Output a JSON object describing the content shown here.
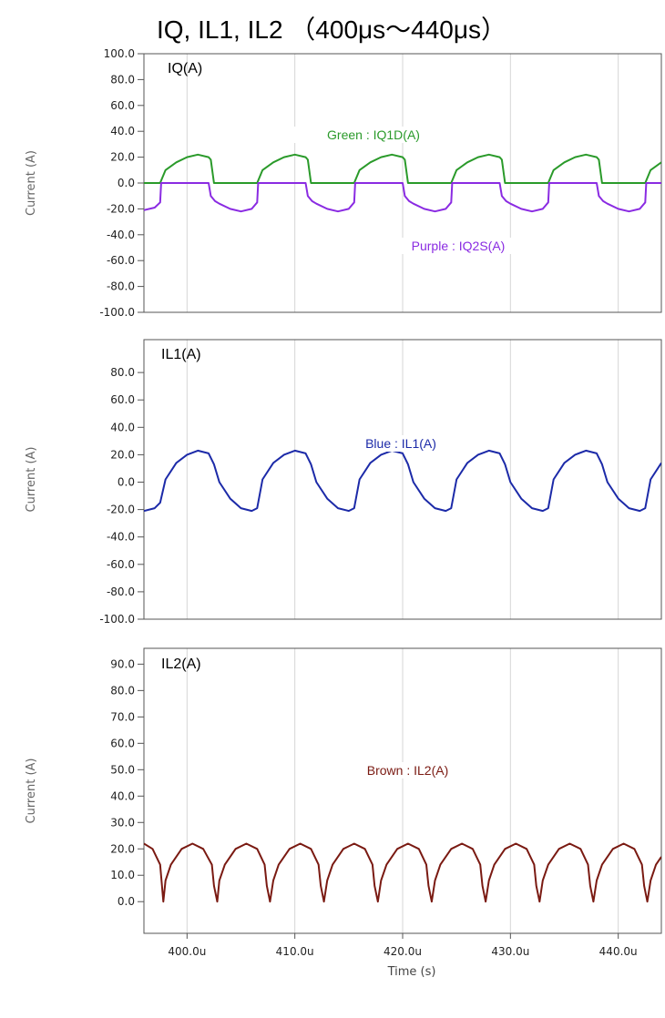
{
  "title": "IQ, IL1, IL2 （400μs～440μs）",
  "chart_data": [
    {
      "type": "line",
      "panel_title": "IQ(A)",
      "ylabel": "Current (A)",
      "ylim": [
        -100,
        100
      ],
      "yticks": [
        "100.0",
        "80.0",
        "60.0",
        "40.0",
        "20.0",
        "0.0",
        "-20.0",
        "-40.0",
        "-60.0",
        "-80.0",
        "-100.0"
      ],
      "grid": true,
      "xlim": [
        396,
        444
      ],
      "series": [
        {
          "name": "IQ1D(A)",
          "legend_label": "Green : IQ1D(A)",
          "color": "#2a9a2a",
          "x": [
            396,
            397.5,
            398,
            399,
            400,
            401,
            402,
            402.2,
            402.5,
            403,
            404,
            405,
            406,
            406.5,
            407,
            408,
            409,
            410,
            411,
            411.2,
            411.5,
            412,
            413,
            414,
            415,
            415.5,
            416,
            417,
            418,
            419,
            420,
            420.2,
            420.5,
            421,
            422,
            423,
            424,
            424.5,
            425,
            426,
            427,
            428,
            429,
            429.2,
            429.5,
            430,
            431,
            432,
            433,
            433.5,
            434,
            435,
            436,
            437,
            438,
            438.2,
            438.5,
            439,
            440,
            441,
            442,
            442.5,
            443,
            444
          ],
          "y": [
            0,
            0,
            10,
            16,
            20,
            22,
            20,
            18,
            0,
            0,
            0,
            0,
            0,
            0,
            10,
            16,
            20,
            22,
            20,
            18,
            0,
            0,
            0,
            0,
            0,
            0,
            10,
            16,
            20,
            22,
            20,
            18,
            0,
            0,
            0,
            0,
            0,
            0,
            10,
            16,
            20,
            22,
            20,
            18,
            0,
            0,
            0,
            0,
            0,
            0,
            10,
            16,
            20,
            22,
            20,
            18,
            0,
            0,
            0,
            0,
            0,
            0,
            10,
            16
          ]
        },
        {
          "name": "IQ2S(A)",
          "legend_label": "Purple : IQ2S(A)",
          "color": "#8a2be2",
          "x": [
            396,
            397,
            397.5,
            397.6,
            398,
            399,
            400,
            401,
            402,
            402.2,
            402.6,
            403,
            404,
            405,
            406,
            406.5,
            406.6,
            407,
            408,
            409,
            410,
            411,
            411.2,
            411.6,
            412,
            413,
            414,
            415,
            415.5,
            415.6,
            416,
            417,
            418,
            419,
            420,
            420.2,
            420.6,
            421,
            422,
            423,
            424,
            424.5,
            424.6,
            425,
            426,
            427,
            428,
            429,
            429.2,
            429.6,
            430,
            431,
            432,
            433,
            433.5,
            433.6,
            434,
            435,
            436,
            437,
            438,
            438.2,
            438.6,
            439,
            440,
            441,
            442,
            442.5,
            442.6,
            443,
            444
          ],
          "y": [
            -21,
            -19,
            -15,
            0,
            0,
            0,
            0,
            0,
            0,
            -10,
            -14,
            -16,
            -20,
            -22,
            -20,
            -15,
            0,
            0,
            0,
            0,
            0,
            0,
            -10,
            -14,
            -16,
            -20,
            -22,
            -20,
            -15,
            0,
            0,
            0,
            0,
            0,
            0,
            -10,
            -14,
            -16,
            -20,
            -22,
            -20,
            -15,
            0,
            0,
            0,
            0,
            0,
            0,
            -10,
            -14,
            -16,
            -20,
            -22,
            -20,
            -15,
            0,
            0,
            0,
            0,
            0,
            0,
            -10,
            -14,
            -16,
            -20,
            -22,
            -20,
            -15,
            0,
            0,
            0
          ]
        }
      ]
    },
    {
      "type": "line",
      "panel_title": "IL1(A)",
      "ylabel": "Current (A)",
      "ylim": [
        -100,
        100
      ],
      "yticks": [
        "80.0",
        "60.0",
        "40.0",
        "20.0",
        "0.0",
        "-20.0",
        "-40.0",
        "-60.0",
        "-80.0",
        "-100.0"
      ],
      "grid": true,
      "xlim": [
        396,
        444
      ],
      "series": [
        {
          "name": "IL1(A)",
          "legend_label": "Blue : IL1(A)",
          "color": "#1c2aa8",
          "x": [
            396,
            397,
            397.5,
            398,
            399,
            400,
            401,
            402,
            402.5,
            403,
            404,
            405,
            406,
            406.5,
            407,
            408,
            409,
            410,
            411,
            411.5,
            412,
            413,
            414,
            415,
            415.5,
            416,
            417,
            418,
            419,
            420,
            420.5,
            421,
            422,
            423,
            424,
            424.5,
            425,
            426,
            427,
            428,
            429,
            429.5,
            430,
            431,
            432,
            433,
            433.5,
            434,
            435,
            436,
            437,
            438,
            438.5,
            439,
            440,
            441,
            442,
            442.5,
            443,
            444
          ],
          "y": [
            -21,
            -19,
            -15,
            2,
            14,
            20,
            23,
            21,
            13,
            0,
            -12,
            -19,
            -21,
            -19,
            2,
            14,
            20,
            23,
            21,
            13,
            0,
            -12,
            -19,
            -21,
            -19,
            2,
            14,
            20,
            23,
            21,
            13,
            0,
            -12,
            -19,
            -21,
            -19,
            2,
            14,
            20,
            23,
            21,
            13,
            0,
            -12,
            -19,
            -21,
            -19,
            2,
            14,
            20,
            23,
            21,
            13,
            0,
            -12,
            -19,
            -21,
            -19,
            2,
            14
          ]
        }
      ]
    },
    {
      "type": "line",
      "panel_title": "IL2(A)",
      "ylabel": "Current (A)",
      "xlabel": "Time (s)",
      "ylim": [
        -10,
        95
      ],
      "yticks": [
        "90.0",
        "80.0",
        "70.0",
        "60.0",
        "50.0",
        "40.0",
        "30.0",
        "20.0",
        "10.0",
        "0.0"
      ],
      "xticks": [
        "400.0u",
        "410.0u",
        "420.0u",
        "430.0u",
        "440.0u"
      ],
      "grid": true,
      "xlim": [
        396,
        444
      ],
      "series": [
        {
          "name": "IL2(A)",
          "legend_label": "Brown : IL2(A)",
          "color": "#7a1a12",
          "x": [
            396,
            396.8,
            397.5,
            397.8,
            398,
            398.5,
            399.5,
            400.5,
            401.5,
            402.3,
            402.5,
            402.8,
            403,
            403.5,
            404.5,
            405.5,
            406.5,
            407.2,
            407.4,
            407.7,
            408,
            408.5,
            409.5,
            410.5,
            411.5,
            412.2,
            412.4,
            412.7,
            413,
            413.5,
            414.5,
            415.5,
            416.5,
            417.2,
            417.4,
            417.7,
            418,
            418.5,
            419.5,
            420.5,
            421.5,
            422.2,
            422.4,
            422.7,
            423,
            423.5,
            424.5,
            425.5,
            426.5,
            427.2,
            427.4,
            427.7,
            428,
            428.5,
            429.5,
            430.5,
            431.5,
            432.2,
            432.4,
            432.7,
            433,
            433.5,
            434.5,
            435.5,
            436.5,
            437.2,
            437.4,
            437.7,
            438,
            438.5,
            439.5,
            440.5,
            441.5,
            442.2,
            442.4,
            442.7,
            443,
            443.5,
            444
          ],
          "y": [
            22,
            20,
            14,
            0,
            8,
            14,
            20,
            22,
            20,
            14,
            6,
            0,
            8,
            14,
            20,
            22,
            20,
            14,
            6,
            0,
            8,
            14,
            20,
            22,
            20,
            14,
            6,
            0,
            8,
            14,
            20,
            22,
            20,
            14,
            6,
            0,
            8,
            14,
            20,
            22,
            20,
            14,
            6,
            0,
            8,
            14,
            20,
            22,
            20,
            14,
            6,
            0,
            8,
            14,
            20,
            22,
            20,
            14,
            6,
            0,
            8,
            14,
            20,
            22,
            20,
            14,
            6,
            0,
            8,
            14,
            20,
            22,
            20,
            14,
            6,
            0,
            8,
            14,
            17
          ]
        }
      ]
    }
  ]
}
